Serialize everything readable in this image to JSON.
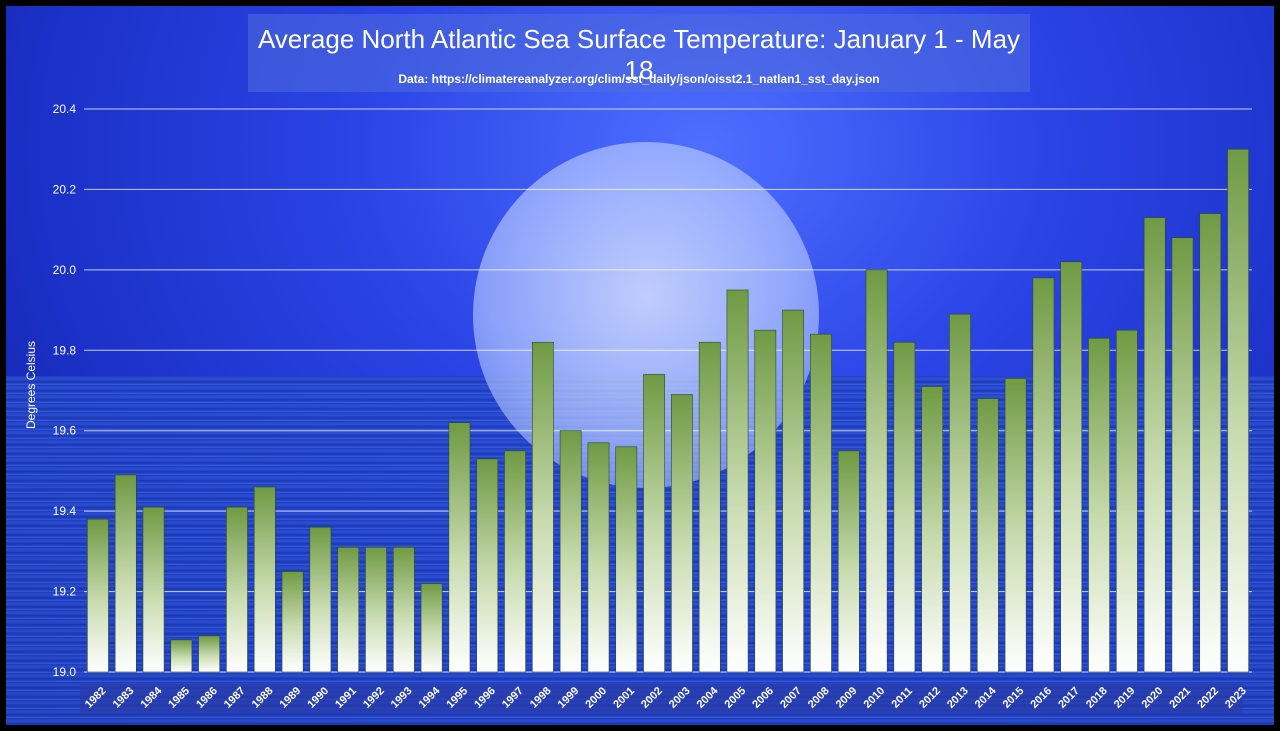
{
  "chart_data": {
    "type": "bar",
    "title": "Average North Atlantic Sea Surface Temperature: January 1 - May 18",
    "subtitle": "Data: https://climatereanalyzer.org/clim/sst_daily/json/oisst2.1_natlan1_sst_day.json",
    "ylabel": "Degrees Celsius",
    "xlabel": "",
    "ylim": [
      19.0,
      20.4
    ],
    "yticks": [
      "19.0",
      "19.2",
      "19.4",
      "19.6",
      "19.8",
      "20.0",
      "20.2",
      "20.4"
    ],
    "grid": true,
    "categories": [
      "1982",
      "1983",
      "1984",
      "1985",
      "1986",
      "1987",
      "1988",
      "1989",
      "1990",
      "1991",
      "1992",
      "1993",
      "1994",
      "1995",
      "1996",
      "1997",
      "1998",
      "1999",
      "2000",
      "2001",
      "2002",
      "2003",
      "2004",
      "2005",
      "2006",
      "2007",
      "2008",
      "2009",
      "2010",
      "2011",
      "2012",
      "2013",
      "2014",
      "2015",
      "2016",
      "2017",
      "2018",
      "2019",
      "2020",
      "2021",
      "2022",
      "2023"
    ],
    "values": [
      19.38,
      19.49,
      19.41,
      19.08,
      19.09,
      19.41,
      19.46,
      19.25,
      19.36,
      19.31,
      19.31,
      19.31,
      19.22,
      19.62,
      19.53,
      19.55,
      19.82,
      19.6,
      19.57,
      19.56,
      19.74,
      19.69,
      19.82,
      19.95,
      19.85,
      19.9,
      19.84,
      19.55,
      20.0,
      19.82,
      19.71,
      19.89,
      19.68,
      19.73,
      19.98,
      20.02,
      19.83,
      19.85,
      20.13,
      20.08,
      20.14,
      20.3
    ],
    "colors": {
      "bar_top": "#6f9a44",
      "bar_bottom": "#ffffff",
      "grid": "#ffffff",
      "text": "#ffffff"
    }
  }
}
